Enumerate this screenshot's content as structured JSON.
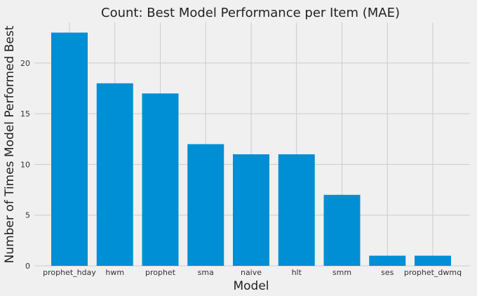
{
  "chart_data": {
    "type": "bar",
    "title": "Count: Best Model Performance per Item (MAE)",
    "xlabel": "Model",
    "ylabel": "Number of Times Model Performed Best",
    "categories": [
      "prophet_hday",
      "hwm",
      "prophet",
      "sma",
      "naive",
      "hlt",
      "smm",
      "ses",
      "prophet_dwmq"
    ],
    "values": [
      23,
      18,
      17,
      12,
      11,
      11,
      7,
      1,
      1
    ],
    "ylim": [
      0,
      24
    ],
    "yticks": [
      0,
      5,
      10,
      15,
      20
    ],
    "grid": true,
    "bar_color": "#008fd5",
    "gridline_color": "#cbcbcb",
    "background_color": "#f0f0f0"
  }
}
